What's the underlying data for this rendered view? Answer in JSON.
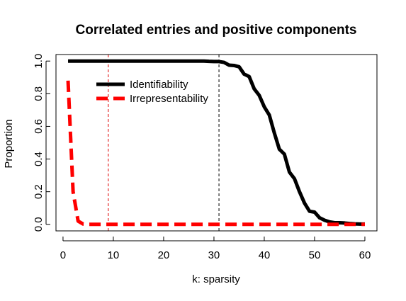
{
  "chart_data": {
    "type": "line",
    "title": "Correlated entries and positive components",
    "xlabel": "k: sparsity",
    "ylabel": "Proportion",
    "xlim": [
      -1.4,
      62.4
    ],
    "ylim": [
      -0.04,
      1.04
    ],
    "xticks": [
      0,
      10,
      20,
      30,
      40,
      50,
      60
    ],
    "yticks": [
      0.0,
      0.2,
      0.4,
      0.6,
      0.8,
      1.0
    ],
    "xtick_labels": [
      "0",
      "10",
      "20",
      "30",
      "40",
      "50",
      "60"
    ],
    "ytick_labels": [
      "0.0",
      "0.2",
      "0.4",
      "0.6",
      "0.8",
      "1.0"
    ],
    "grid": false,
    "legend_position": "top-left inside",
    "vlines": [
      {
        "x": 9,
        "color": "#e00000",
        "style": "dashed"
      },
      {
        "x": 31,
        "color": "#000000",
        "style": "dashed"
      }
    ],
    "series": [
      {
        "name": "Identifiability",
        "color": "#000000",
        "style": "solid",
        "x": [
          1,
          2,
          3,
          4,
          5,
          6,
          7,
          8,
          9,
          10,
          11,
          12,
          13,
          14,
          15,
          16,
          17,
          18,
          19,
          20,
          21,
          22,
          23,
          24,
          25,
          26,
          27,
          28,
          29,
          30,
          31,
          32,
          33,
          34,
          35,
          36,
          37,
          38,
          39,
          40,
          41,
          42,
          43,
          44,
          45,
          46,
          47,
          48,
          49,
          50,
          51,
          52,
          53,
          54,
          55,
          56,
          57,
          58,
          59,
          60
        ],
        "y": [
          1,
          1,
          1,
          1,
          1,
          1,
          1,
          1,
          1,
          1,
          1,
          1,
          1,
          1,
          1,
          1,
          1,
          1,
          1,
          1,
          1,
          1,
          1,
          1,
          1,
          1,
          1,
          1,
          0.998,
          0.997,
          0.997,
          0.992,
          0.975,
          0.973,
          0.965,
          0.92,
          0.905,
          0.83,
          0.79,
          0.72,
          0.67,
          0.56,
          0.46,
          0.43,
          0.32,
          0.28,
          0.2,
          0.13,
          0.08,
          0.075,
          0.04,
          0.025,
          0.015,
          0.01,
          0.01,
          0.008,
          0.005,
          0.003,
          0.002,
          0.002
        ]
      },
      {
        "name": "Irrepresentability",
        "color": "#ff0000",
        "style": "dashed",
        "x": [
          1,
          2,
          3,
          4,
          5,
          6,
          7,
          8,
          9,
          10,
          11,
          12,
          13,
          14,
          15,
          16,
          17,
          18,
          19,
          20,
          21,
          22,
          23,
          24,
          25,
          26,
          27,
          28,
          29,
          30,
          31,
          32,
          33,
          34,
          35,
          36,
          37,
          38,
          39,
          40,
          41,
          42,
          43,
          44,
          45,
          46,
          47,
          48,
          49,
          50,
          51,
          52,
          53,
          54,
          55,
          56,
          57,
          58,
          59,
          60
        ],
        "y": [
          0.88,
          0.2,
          0.02,
          0.002,
          0,
          0,
          0,
          0,
          0,
          0,
          0,
          0,
          0,
          0,
          0,
          0,
          0,
          0,
          0,
          0,
          0,
          0,
          0,
          0,
          0,
          0,
          0,
          0,
          0,
          0,
          0,
          0,
          0,
          0,
          0,
          0,
          0,
          0,
          0,
          0,
          0,
          0,
          0,
          0,
          0,
          0,
          0,
          0,
          0,
          0,
          0,
          0,
          0,
          0,
          0,
          0,
          0,
          0,
          0,
          0
        ]
      }
    ]
  }
}
